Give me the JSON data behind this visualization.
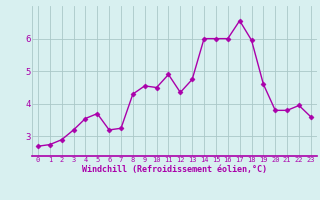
{
  "x": [
    0,
    1,
    2,
    3,
    4,
    5,
    6,
    7,
    8,
    9,
    10,
    11,
    12,
    13,
    14,
    15,
    16,
    17,
    18,
    19,
    20,
    21,
    22,
    23
  ],
  "y": [
    2.7,
    2.75,
    2.9,
    3.2,
    3.55,
    3.7,
    3.2,
    3.25,
    4.3,
    4.55,
    4.5,
    4.9,
    4.35,
    4.75,
    6.0,
    6.0,
    6.0,
    6.55,
    5.95,
    4.6,
    3.8,
    3.8,
    3.95,
    3.6
  ],
  "line_color": "#aa00aa",
  "marker": "D",
  "markersize": 2.5,
  "linewidth": 1.0,
  "bg_color": "#d8f0f0",
  "grid_color": "#aac8c8",
  "xlabel": "Windchill (Refroidissement éolien,°C)",
  "xlabel_color": "#aa00aa",
  "tick_color": "#aa00aa",
  "ylim": [
    2.4,
    7.0
  ],
  "xlim": [
    -0.5,
    23.5
  ],
  "yticks": [
    3,
    4,
    5,
    6
  ],
  "xticks": [
    0,
    1,
    2,
    3,
    4,
    5,
    6,
    7,
    8,
    9,
    10,
    11,
    12,
    13,
    14,
    15,
    16,
    17,
    18,
    19,
    20,
    21,
    22,
    23
  ]
}
